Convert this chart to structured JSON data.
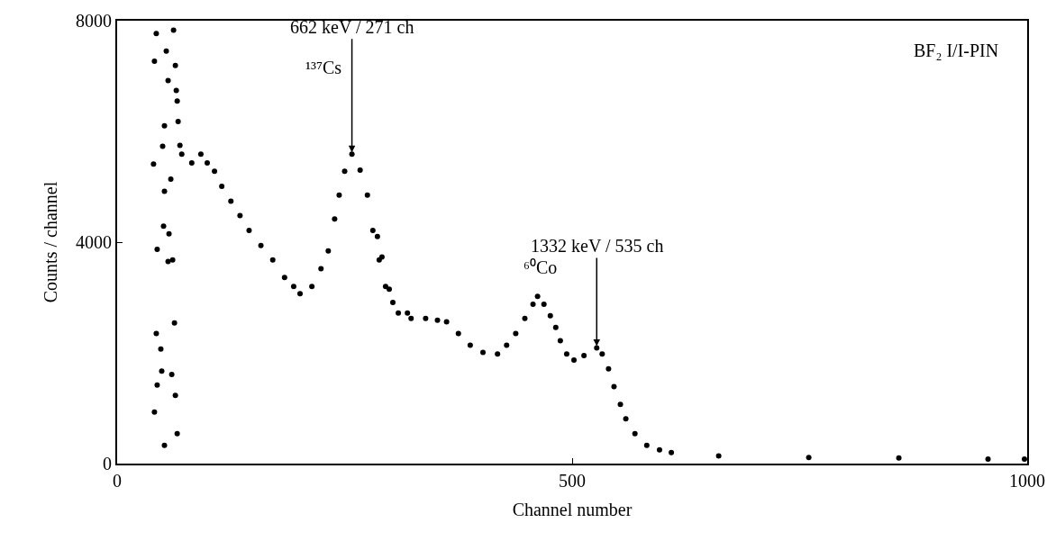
{
  "chart_data": {
    "type": "scatter",
    "xlabel": "Channel number",
    "ylabel": "Counts / channel",
    "xlim": [
      0,
      1000
    ],
    "xticks": [
      0,
      500,
      1000
    ],
    "ylim": [
      0,
      8000
    ],
    "yticks": [
      0,
      4000,
      8000
    ],
    "marker": "circle",
    "series": [
      {
        "color": "#000000",
        "x": [
          43,
          62,
          54,
          41,
          64,
          56,
          65,
          66,
          67,
          52,
          69,
          50,
          40,
          59,
          52,
          51,
          57,
          44,
          56,
          61,
          63,
          43,
          48,
          49,
          60,
          44,
          64,
          41,
          66,
          52,
          71,
          82,
          92,
          99,
          107,
          115,
          125,
          135,
          145,
          158,
          171,
          184,
          194,
          201,
          214,
          224,
          232,
          239,
          244,
          250,
          258,
          267,
          275,
          281,
          286,
          288,
          291,
          295,
          299,
          303,
          309,
          319,
          323,
          339,
          352,
          362,
          375,
          388,
          402,
          418,
          428,
          438,
          448,
          457,
          462,
          469,
          476,
          482,
          487,
          494,
          502,
          513,
          527,
          533,
          540,
          546,
          553,
          559,
          569,
          582,
          596,
          609,
          661,
          760,
          859,
          957,
          997
        ],
        "values": [
          7770,
          7830,
          7450,
          7270,
          7190,
          6920,
          6740,
          6550,
          6180,
          6100,
          5750,
          5730,
          5410,
          5140,
          4920,
          4290,
          4150,
          3870,
          3650,
          3680,
          2540,
          2350,
          2070,
          1670,
          1610,
          1420,
          1230,
          930,
          540,
          330,
          5590,
          5430,
          5590,
          5430,
          5280,
          5010,
          4740,
          4480,
          4210,
          3940,
          3680,
          3360,
          3200,
          3070,
          3200,
          3520,
          3840,
          4420,
          4850,
          5280,
          5590,
          5300,
          4850,
          4210,
          4100,
          3680,
          3730,
          3200,
          3150,
          2910,
          2720,
          2720,
          2620,
          2620,
          2590,
          2560,
          2350,
          2140,
          2010,
          1980,
          2140,
          2350,
          2620,
          2880,
          3020,
          2880,
          2670,
          2460,
          2220,
          1980,
          1870,
          1950,
          2090,
          1980,
          1710,
          1390,
          1070,
          810,
          540,
          330,
          250,
          200,
          140,
          110,
          100,
          80,
          80
        ]
      }
    ],
    "annotations": [
      "¹³⁷Cs",
      {
        "text": "662 keV / 271 ch",
        "x": 258,
        "y": 5590
      },
      "⁶⁰Co",
      {
        "text": "1332 keV / 535 ch",
        "x": 527,
        "y": 2090
      },
      "BF₂ I/I-PIN"
    ]
  }
}
